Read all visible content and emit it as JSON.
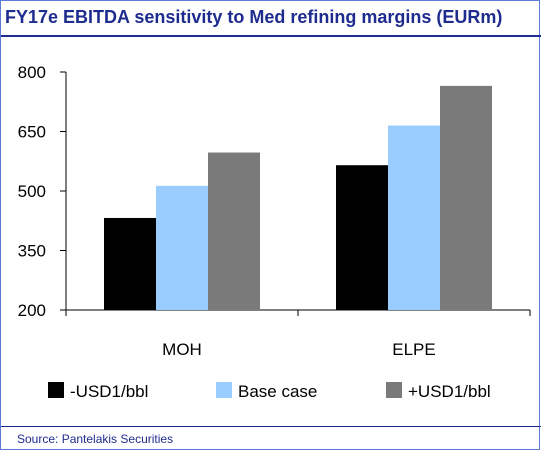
{
  "title": "FY17e EBITDA sensitivity to Med refining margins (EURm)",
  "source": "Source: Pantelakis Securities",
  "colors": {
    "title": "#1f2c8f",
    "border": "#5b7bd6"
  },
  "chart_data": {
    "type": "bar",
    "categories": [
      "MOH",
      "ELPE"
    ],
    "series": [
      {
        "name": "-USD1/bbl",
        "color": "#000000",
        "values": [
          432,
          565
        ]
      },
      {
        "name": "Base case",
        "color": "#99ccff",
        "values": [
          513,
          665
        ]
      },
      {
        "name": "+USD1/bbl",
        "color": "#7a7a7a",
        "values": [
          597,
          765
        ]
      }
    ],
    "yticks": [
      200,
      350,
      500,
      650,
      800
    ],
    "ylim": [
      200,
      800
    ],
    "grid": false,
    "legend_position": "bottom"
  }
}
